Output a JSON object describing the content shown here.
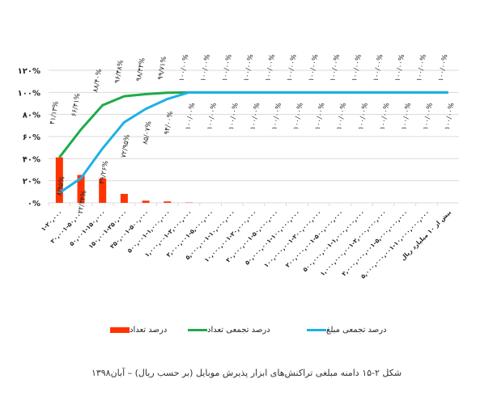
{
  "chart_data": {
    "type": "bar+line",
    "title": "",
    "xlabel": "",
    "ylabel": "",
    "ylim": [
      0,
      120
    ],
    "yticks": [
      0,
      20,
      40,
      60,
      80,
      100,
      120
    ],
    "ytick_labels": [
      "۰%",
      "۲۰%",
      "۴۰%",
      "۶۰%",
      "۸۰%",
      "۱۰۰%",
      "۱۲۰%"
    ],
    "grid": true,
    "legend_position": "bottom",
    "categories": [
      "۱-۲۰,۰۰۰",
      "۲۰,۰۰۱-۵۰,۰۰۰",
      "۵۰,۰۰۱-۱۵۰,۰۰۰",
      "۱۵۰,۰۰۱-۲۵۰,۰۰۰",
      "۲۵۰,۰۰۱-۵۰۰,۰۰۰",
      "۵۰۰,۰۰۱-۱,۰۰۰,۰۰۰",
      "۱,۰۰۰,۰۰۱-۲,۰۰۰,۰۰۰",
      "۲,۰۰۰,۰۰۱-۵,۰۰۰,۰۰۰",
      "۵,۰۰۰,۰۰۱-۱۰,۰۰۰,۰۰۰",
      "۱۰,۰۰۰,۰۰۱-۲۰,۰۰۰,۰۰۰",
      "۲۰,۰۰۰,۰۰۱-۵۰,۰۰۰,۰۰۰",
      "۵۰,۰۰۰,۰۰۱-۱۰۰,۰۰۰,۰۰۰",
      "۱۰۰,۰۰۰,۰۰۱-۲۰۰,۰۰۰,۰۰۰",
      "۲۰۰,۰۰۰,۰۰۱-۵۰۰,۰۰۰,۰۰۰",
      "۵۰۰,۰۰۰,۰۰۱-۱,۰۰۰,۰۰۰,۰۰۰",
      "۱,۰۰۰,۰۰۰,۰۰۱-۲,۰۰۰,۰۰۰,۰۰۰",
      "۲,۰۰۰,۰۰۰,۰۰۱-۵,۰۰۰,۰۰۰,۰۰۰",
      "۵,۰۰۰,۰۰۰,۰۰۱-۱۰,۰۰۰,۰۰۰,۰۰۰",
      "بیش از ۱۰ میلیارد ریال"
    ],
    "series": [
      {
        "name": "درصد تعداد",
        "type": "bar",
        "color": "#ff3300",
        "values": [
          41.13,
          25.28,
          21.99,
          8.08,
          1.95,
          1.28,
          0.29,
          0,
          0,
          0,
          0,
          0,
          0,
          0,
          0,
          0,
          0,
          0,
          0
        ],
        "labels": []
      },
      {
        "name": "درصد تجمعی تعداد",
        "type": "line",
        "color": "#1faa4a",
        "values": [
          41.13,
          66.41,
          88.4,
          96.48,
          98.43,
          99.71,
          100,
          100,
          100,
          100,
          100,
          100,
          100,
          100,
          100,
          100,
          100,
          100,
          100
        ],
        "labels": [
          "۴۱/۱۳%",
          "۶۶/۴۱%",
          "۸۸/۴۰%",
          "۹۶/۴۸%",
          "۹۸/۴۳%",
          "۹۹/۷۱%",
          "۱۰۰/۰۰%",
          "۱۰۰/۰۰%",
          "۱۰۰/۰۰%",
          "۱۰۰/۰۰%",
          "۱۰۰/۰۰%",
          "۱۰۰/۰۰%",
          "۱۰۰/۰۰%",
          "۱۰۰/۰۰%",
          "۱۰۰/۰۰%",
          "۱۰۰/۰۰%",
          "۱۰۰/۰۰%",
          "۱۰۰/۰۰%",
          "۱۰۰/۰۰%"
        ]
      },
      {
        "name": "درصد تجمعی مبلغ",
        "type": "line",
        "color": "#1fb0e6",
        "values": [
          8.95,
          22.34,
          49.26,
          72.95,
          85.07,
          94.0,
          100,
          100,
          100,
          100,
          100,
          100,
          100,
          100,
          100,
          100,
          100,
          100,
          100
        ],
        "labels": [
          "۸/۹۵%",
          "۲۲/۳۴%",
          "۴۹/۲۶%",
          "۷۲/۹۵%",
          "۸۵/۰۷%",
          "۹۴/۰۰%",
          "۱۰۰/۰۰%",
          "۱۰۰/۰۰%",
          "۱۰۰/۰۰%",
          "۱۰۰/۰۰%",
          "۱۰۰/۰۰%",
          "۱۰۰/۰۰%",
          "۱۰۰/۰۰%",
          "۱۰۰/۰۰%",
          "۱۰۰/۰۰%",
          "۱۰۰/۰۰%",
          "۱۰۰/۰۰%",
          "۱۰۰/۰۰%",
          "۱۰۰/۰۰%"
        ]
      }
    ]
  },
  "legend": {
    "count": "درصد تعداد",
    "cum_count": "درصد تجمعی تعداد",
    "cum_amount": "درصد تجمعی مبلغ"
  },
  "caption": "شکل ۲-۱۵ دامنه مبلغی تراکنش‌های ابزار پذیرش موبایل (بر حسب ریال) – آبان۱۳۹۸"
}
